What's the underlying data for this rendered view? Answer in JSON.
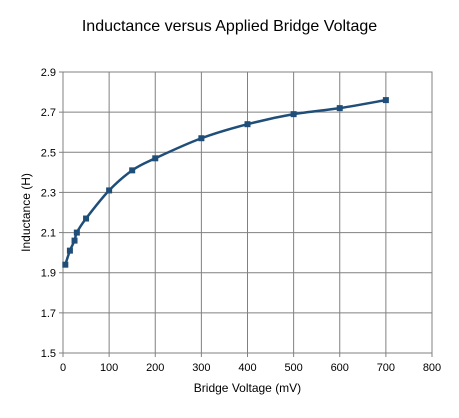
{
  "chart_data": {
    "type": "line",
    "title": "Inductance versus Applied Bridge Voltage",
    "xlabel": "Bridge Voltage (mV)",
    "ylabel": "Inductance (H)",
    "xlim": [
      0,
      800
    ],
    "ylim": [
      1.5,
      2.9
    ],
    "x_ticks": [
      "0",
      "100",
      "200",
      "300",
      "400",
      "500",
      "600",
      "700",
      "800"
    ],
    "y_ticks": [
      "1.5",
      "1.7",
      "1.9",
      "2.1",
      "2.3",
      "2.5",
      "2.7",
      "2.9"
    ],
    "grid": true,
    "legend": "none",
    "series": [
      {
        "color": "#1f4e79",
        "marker": "square",
        "x": [
          5,
          15,
          25,
          30,
          50,
          100,
          150,
          200,
          300,
          400,
          500,
          600,
          700
        ],
        "y": [
          1.94,
          2.01,
          2.06,
          2.1,
          2.17,
          2.31,
          2.41,
          2.47,
          2.57,
          2.64,
          2.69,
          2.72,
          2.76
        ]
      }
    ]
  }
}
